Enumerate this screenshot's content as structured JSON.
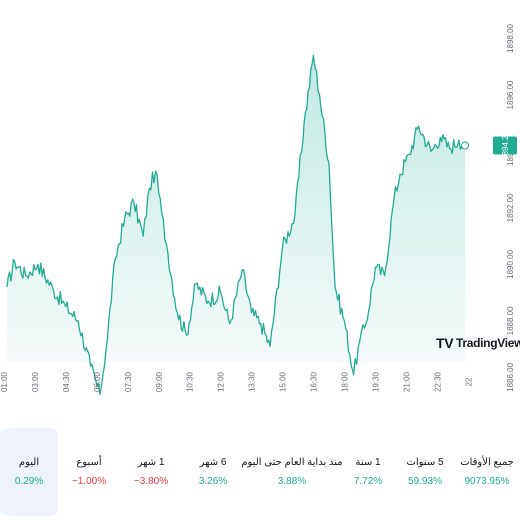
{
  "chart_data": {
    "type": "area",
    "x_ticks": [
      "01:00",
      "03:00",
      "04:30",
      "06:00",
      "07:30",
      "09:00",
      "10:30",
      "12:00",
      "13:30",
      "15:00",
      "16:30",
      "18:00",
      "19:30",
      "21:00",
      "22:30",
      "22"
    ],
    "y_ticks": [
      1886.0,
      1888.0,
      1890.0,
      1892.0,
      1894.0,
      1896.0,
      1898.0
    ],
    "ylim": [
      1885.2,
      1898.3
    ],
    "last_price": "1894.21",
    "key_points": [
      [
        0,
        1889.2
      ],
      [
        0.25,
        1890.1
      ],
      [
        0.6,
        1889.6
      ],
      [
        1.0,
        1890.0
      ],
      [
        1.5,
        1889.1
      ],
      [
        1.9,
        1888.5
      ],
      [
        2.3,
        1888.0
      ],
      [
        2.7,
        1886.4
      ],
      [
        3.0,
        1885.4
      ],
      [
        3.2,
        1887.0
      ],
      [
        3.5,
        1890.2
      ],
      [
        3.8,
        1891.6
      ],
      [
        4.1,
        1892.2
      ],
      [
        4.4,
        1891.0
      ],
      [
        4.6,
        1892.7
      ],
      [
        4.8,
        1893.3
      ],
      [
        5.0,
        1891.8
      ],
      [
        5.2,
        1890.4
      ],
      [
        5.5,
        1888.3
      ],
      [
        5.8,
        1887.5
      ],
      [
        6.1,
        1889.3
      ],
      [
        6.5,
        1888.7
      ],
      [
        6.9,
        1889.0
      ],
      [
        7.2,
        1887.9
      ],
      [
        7.6,
        1889.8
      ],
      [
        7.9,
        1888.3
      ],
      [
        8.2,
        1887.9
      ],
      [
        8.5,
        1887.1
      ],
      [
        8.9,
        1890.6
      ],
      [
        9.3,
        1891.7
      ],
      [
        9.6,
        1895.0
      ],
      [
        9.9,
        1897.4
      ],
      [
        10.1,
        1896.0
      ],
      [
        10.4,
        1893.6
      ],
      [
        10.6,
        1889.2
      ],
      [
        10.9,
        1888.0
      ],
      [
        11.2,
        1886.1
      ],
      [
        11.4,
        1887.3
      ],
      [
        11.6,
        1887.9
      ],
      [
        11.9,
        1889.9
      ],
      [
        12.2,
        1889.6
      ],
      [
        12.5,
        1892.3
      ],
      [
        12.7,
        1893.2
      ],
      [
        13.0,
        1893.9
      ],
      [
        13.3,
        1894.9
      ],
      [
        13.7,
        1894.0
      ],
      [
        14.0,
        1894.5
      ],
      [
        14.3,
        1894.1
      ],
      [
        14.6,
        1894.4
      ],
      [
        14.8,
        1894.21
      ]
    ]
  },
  "periods": [
    {
      "label": "اليوم",
      "value": "0.29%",
      "sign": "pos",
      "active": true
    },
    {
      "label": "أسبوع",
      "value": "−1.00%",
      "sign": "neg",
      "active": false
    },
    {
      "label": "1 شهر",
      "value": "−3.80%",
      "sign": "neg",
      "active": false
    },
    {
      "label": "6 شهر",
      "value": "3.26%",
      "sign": "pos",
      "active": false
    },
    {
      "label": "منذ بداية العام حتى اليوم",
      "value": "3.88%",
      "sign": "pos",
      "active": false
    },
    {
      "label": "1 سنة",
      "value": "7.72%",
      "sign": "pos",
      "active": false
    },
    {
      "label": "5 سنوات",
      "value": "59.93%",
      "sign": "pos",
      "active": false
    },
    {
      "label": "جميع الأوقات",
      "value": "9073.95%",
      "sign": "pos",
      "active": false
    }
  ],
  "watermark": {
    "logo": "TV",
    "text": "TradingView"
  },
  "colors": {
    "line": "#22ab94",
    "fill_top": "#22ab94",
    "price_tag": "#22ab94"
  }
}
